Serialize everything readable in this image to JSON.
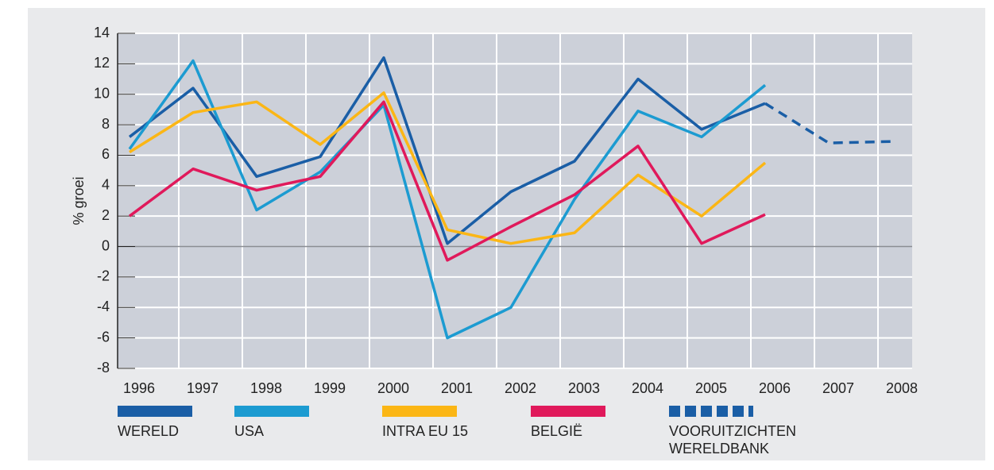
{
  "chart_data": {
    "type": "line",
    "y_label": "% groei",
    "categories": [
      "1996",
      "1997",
      "1998",
      "1999",
      "2000",
      "2001",
      "2002",
      "2003",
      "2004",
      "2005",
      "2006",
      "2007",
      "2008"
    ],
    "series": [
      {
        "name": "WERELD",
        "color": "#1a5ea6",
        "dashed": false,
        "values": [
          7.2,
          10.4,
          4.6,
          5.9,
          12.4,
          0.2,
          3.6,
          5.6,
          11.0,
          7.7,
          9.4,
          null,
          null
        ]
      },
      {
        "name": "USA",
        "color": "#1c9bd1",
        "dashed": false,
        "values": [
          6.4,
          12.2,
          2.4,
          4.9,
          9.3,
          -6.0,
          -4.0,
          3.1,
          8.9,
          7.2,
          10.6,
          null,
          null
        ]
      },
      {
        "name": "INTRA EU 15",
        "color": "#fbb615",
        "dashed": false,
        "values": [
          6.2,
          8.8,
          9.5,
          6.7,
          10.1,
          1.1,
          0.2,
          0.9,
          4.7,
          2.0,
          5.5,
          null,
          null
        ]
      },
      {
        "name": "BELGIË",
        "color": "#e0195b",
        "dashed": false,
        "values": [
          2.0,
          5.1,
          3.7,
          4.6,
          9.5,
          -0.9,
          1.3,
          3.4,
          6.6,
          0.2,
          2.1,
          null,
          null
        ]
      },
      {
        "name": "VOORUITZICHTEN WERELDBANK",
        "color": "#1a5ea6",
        "dashed": true,
        "values": [
          null,
          null,
          null,
          null,
          null,
          null,
          null,
          null,
          null,
          null,
          9.4,
          6.8,
          6.9
        ]
      }
    ],
    "ylim": [
      -8,
      14
    ],
    "yticks": [
      -8,
      -6,
      -4,
      -2,
      0,
      2,
      4,
      6,
      8,
      10,
      12,
      14
    ],
    "grid": true
  }
}
